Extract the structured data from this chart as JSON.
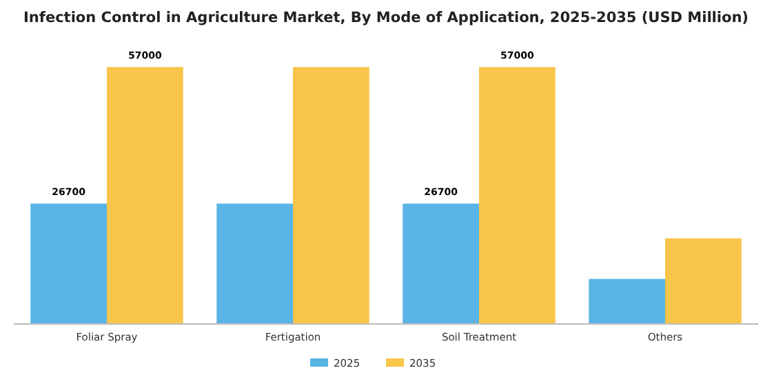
{
  "chart_data": {
    "type": "bar",
    "title": "Infection Control in Agriculture Market, By Mode of Application, 2025-2035 (USD Million)",
    "categories": [
      "Foliar Spray",
      "Fertigation",
      "Soil Treatment",
      "Others"
    ],
    "series": [
      {
        "name": "2025",
        "color": "#5ab4e5",
        "values": [
          26700,
          26700,
          26700,
          10000
        ],
        "value_labels": [
          "26700",
          null,
          "26700",
          null
        ]
      },
      {
        "name": "2035",
        "color": "#f9c54a",
        "values": [
          57000,
          57000,
          57000,
          19000
        ],
        "value_labels": [
          "57000",
          null,
          "57000",
          null
        ]
      }
    ],
    "legend": "bottom"
  }
}
